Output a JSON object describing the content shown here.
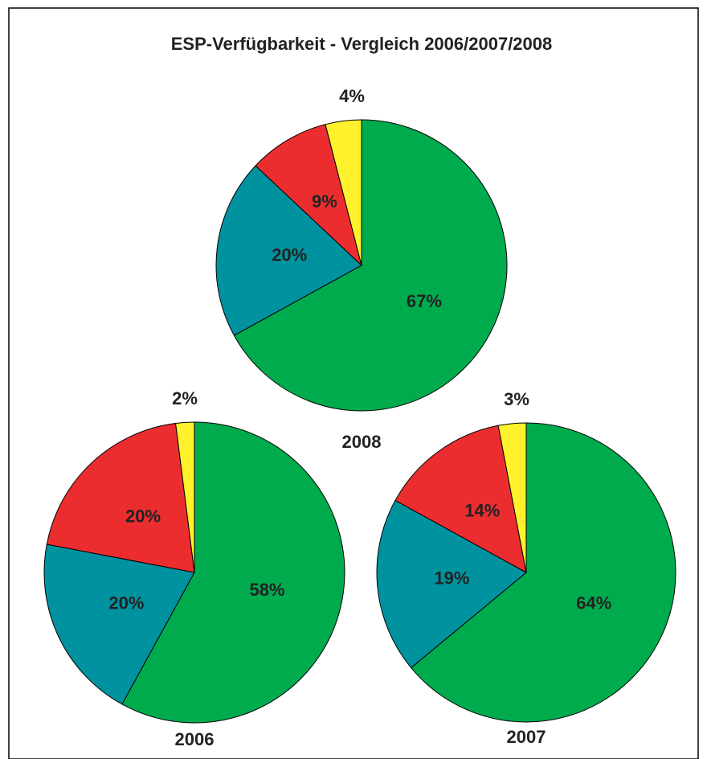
{
  "title": "ESP-Verfügbarkeit  -  Vergleich 2006/2007/2008",
  "chart_data": [
    {
      "type": "pie",
      "label": "2008",
      "values": [
        67,
        20,
        9,
        4
      ],
      "value_labels": [
        "67%",
        "20%",
        "9%",
        "4%"
      ],
      "colors": [
        "#00ab4e",
        "#00929f",
        "#ec2d2f",
        "#fff22d"
      ]
    },
    {
      "type": "pie",
      "label": "2006",
      "values": [
        58,
        20,
        20,
        2
      ],
      "value_labels": [
        "58%",
        "20%",
        "20%",
        "2%"
      ],
      "colors": [
        "#00ab4e",
        "#00929f",
        "#ec2d2f",
        "#fff22d"
      ]
    },
    {
      "type": "pie",
      "label": "2007",
      "values": [
        64,
        19,
        14,
        3
      ],
      "value_labels": [
        "64%",
        "19%",
        "14%",
        "3%"
      ],
      "colors": [
        "#00ab4e",
        "#00929f",
        "#ec2d2f",
        "#fff22d"
      ]
    }
  ]
}
